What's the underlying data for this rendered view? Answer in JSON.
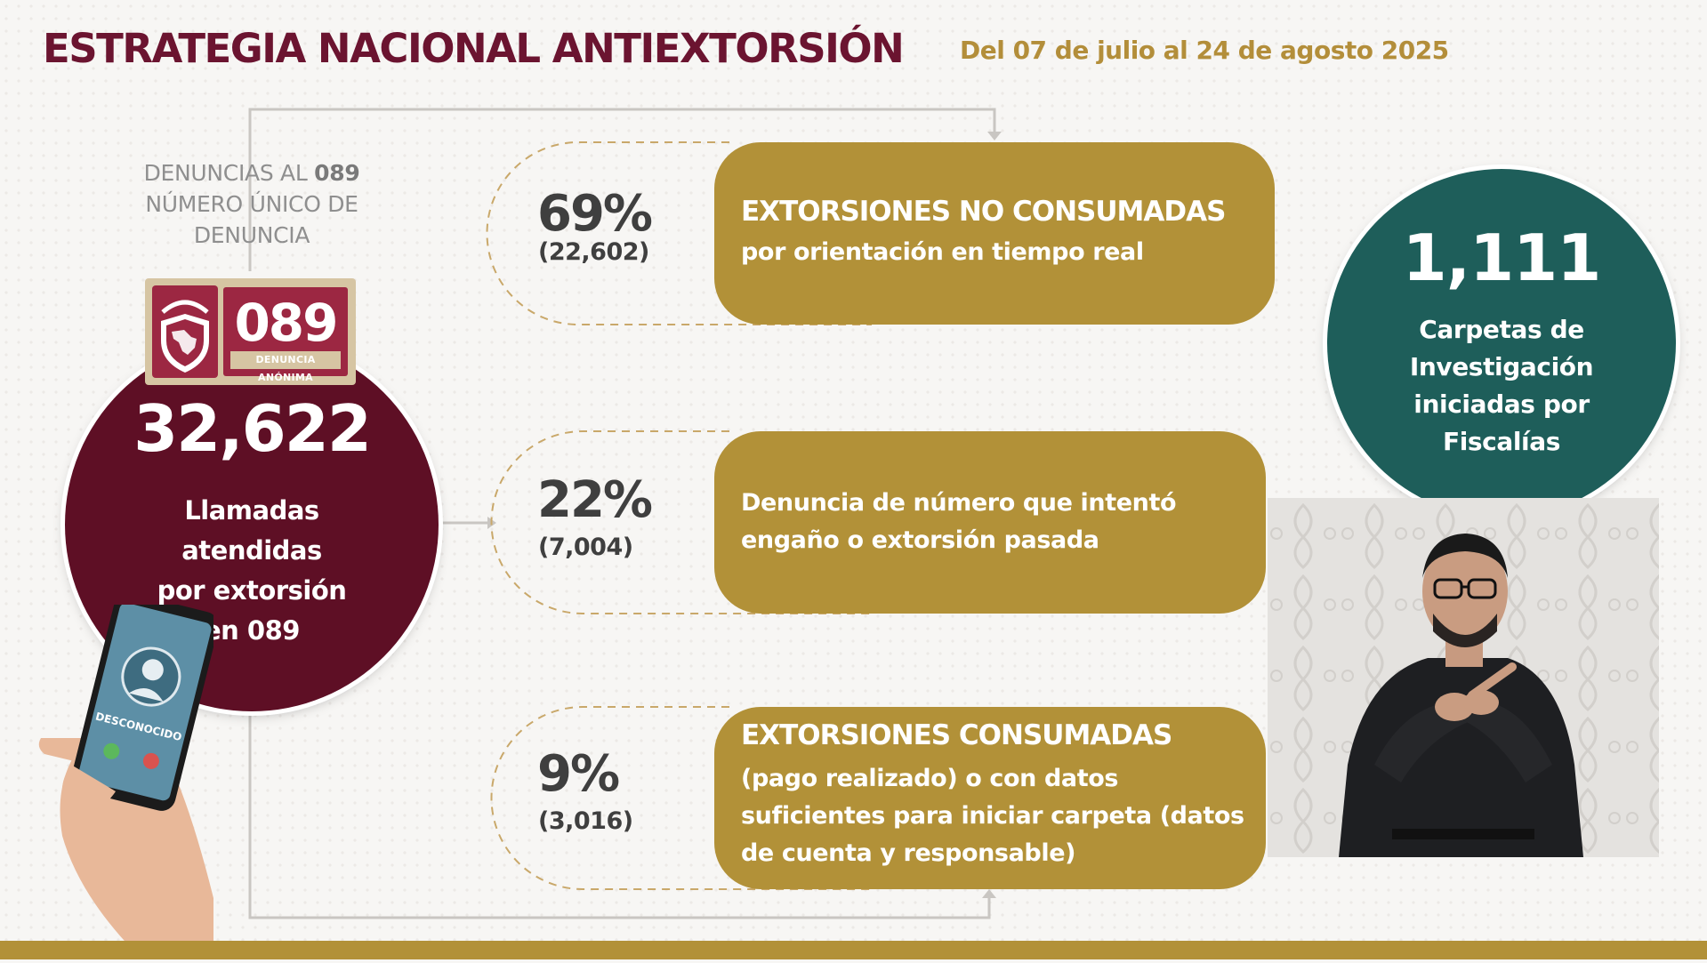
{
  "header": {
    "title": "ESTRATEGIA NACIONAL ANTIEXTORSIÓN",
    "date_range": "Del 07 de julio al 24 de agosto 2025"
  },
  "source_label": {
    "line1_prefix": "DENUNCIAS AL ",
    "line1_bold": "089",
    "line2": "NÚMERO ÚNICO DE",
    "line3": "DENUNCIA"
  },
  "logo": {
    "number": "089",
    "caption": "DENUNCIA ANÓNIMA",
    "shield_icon": "shield-mexico-map-icon"
  },
  "calls": {
    "value": "32,622",
    "line1": "Llamadas",
    "line2": "atendidas",
    "line3": "por extorsión",
    "line4": "en 089"
  },
  "phone": {
    "caller": "DESCONOCIDO",
    "icons": [
      "user-silhouette-icon",
      "answer-call-icon",
      "reject-call-icon"
    ]
  },
  "breakdown": [
    {
      "percent": "69%",
      "count": "(22,602)",
      "headline": "EXTORSIONES NO CONSUMADAS",
      "body": [
        "por orientación en tiempo real"
      ]
    },
    {
      "percent": "22%",
      "count": "(7,004)",
      "headline": "",
      "body": [
        "Denuncia de número que intentó",
        "engaño o extorsión pasada"
      ]
    },
    {
      "percent": "9%",
      "count": "(3,016)",
      "headline": "EXTORSIONES CONSUMADAS",
      "body": [
        "(pago realizado) o con datos",
        "suficientes para iniciar carpeta (datos",
        "de cuenta y responsable)"
      ]
    }
  ],
  "investigations": {
    "value": "1,111",
    "line1": "Carpetas de",
    "line2": "Investigación",
    "line3": "iniciadas por",
    "line4": "Fiscalías"
  },
  "colors": {
    "maroon": "#5e0f25",
    "title": "#6b1430",
    "gold": "#b29138",
    "teal": "#1e5e5a",
    "grey_text": "#8f8f8f"
  }
}
